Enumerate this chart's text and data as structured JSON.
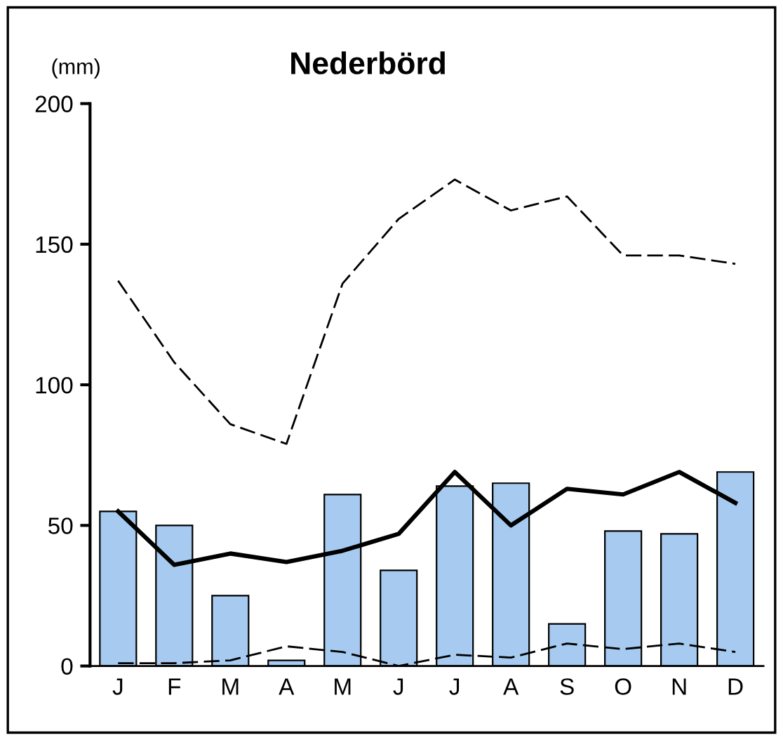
{
  "chart_data": {
    "type": "bar",
    "title": "Nederbörd",
    "ylabel": "(mm)",
    "categories": [
      "J",
      "F",
      "M",
      "A",
      "M",
      "J",
      "J",
      "A",
      "S",
      "O",
      "N",
      "D"
    ],
    "series": [
      {
        "color": "#a6caf0",
        "values": [
          55,
          50,
          25,
          2,
          61,
          34,
          64,
          65,
          15,
          48,
          47,
          69
        ]
      },
      {
        "type": "line",
        "color": "#000000",
        "line_style": "solid",
        "values": [
          55,
          36,
          40,
          37,
          41,
          47,
          69,
          50,
          63,
          61,
          69,
          58
        ]
      },
      {
        "type": "line",
        "color": "#000000",
        "line_style": "dashed",
        "values": [
          137,
          108,
          86,
          79,
          136,
          159,
          173,
          162,
          167,
          146,
          146,
          143
        ]
      },
      {
        "type": "line",
        "color": "#000000",
        "line_style": "dashed",
        "values": [
          1,
          1,
          2,
          7,
          5,
          0,
          4,
          3,
          8,
          6,
          8,
          5
        ]
      }
    ],
    "ylim": [
      0,
      200
    ],
    "yticks": [
      0,
      50,
      100,
      150,
      200
    ],
    "grid": false,
    "legend": false
  }
}
